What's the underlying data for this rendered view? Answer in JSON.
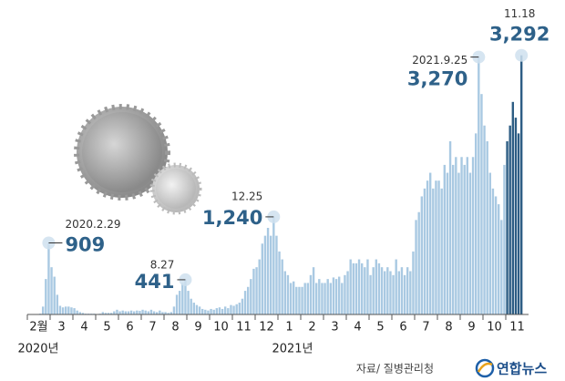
{
  "chart_data": {
    "type": "bar",
    "color": "#a9c9e2",
    "highlight_color": "#2d5d84",
    "ylim": [
      0,
      3300
    ],
    "years": [
      "2020년",
      "2021년"
    ],
    "source": "자료/ 질병관리청",
    "brand": "연합뉴스",
    "months": [
      {
        "label": "2월",
        "values": [
          0,
          0,
          0,
          0,
          10,
          100,
          450,
          909
        ],
        "date_labels": [
          null,
          null,
          null,
          null,
          null,
          null,
          null,
          "2020.2.29"
        ],
        "value_labels": [
          null,
          null,
          null,
          null,
          null,
          null,
          null,
          "909"
        ]
      },
      {
        "label": "3",
        "values": [
          600,
          480,
          250,
          110,
          90,
          100,
          100,
          90
        ]
      },
      {
        "label": "4",
        "values": [
          80,
          50,
          30,
          20,
          10,
          10,
          10,
          10
        ]
      },
      {
        "label": "5",
        "values": [
          5,
          10,
          30,
          20,
          20,
          20,
          40,
          60
        ]
      },
      {
        "label": "6",
        "values": [
          40,
          50,
          40,
          40,
          50,
          40,
          50,
          45
        ]
      },
      {
        "label": "7",
        "values": [
          60,
          50,
          40,
          60,
          40,
          30,
          50,
          30
        ]
      },
      {
        "label": "8",
        "values": [
          30,
          20,
          30,
          100,
          250,
          300,
          400,
          441
        ],
        "date_labels": [
          null,
          null,
          null,
          null,
          null,
          null,
          null,
          "8.27"
        ],
        "value_labels": [
          null,
          null,
          null,
          null,
          null,
          null,
          null,
          "441"
        ]
      },
      {
        "label": "9",
        "values": [
          300,
          200,
          150,
          120,
          100,
          70,
          60,
          50
        ]
      },
      {
        "label": "10",
        "values": [
          70,
          60,
          80,
          90,
          70,
          100,
          80,
          120
        ]
      },
      {
        "label": "11",
        "values": [
          110,
          130,
          150,
          200,
          300,
          350,
          450,
          580
        ]
      },
      {
        "label": "12",
        "values": [
          600,
          700,
          900,
          1000,
          1100,
          1000,
          1240,
          1000
        ],
        "date_labels": [
          null,
          null,
          null,
          null,
          null,
          null,
          "12.25",
          null
        ],
        "value_labels": [
          null,
          null,
          null,
          null,
          null,
          null,
          "1,240",
          null
        ]
      },
      {
        "label": "1",
        "values": [
          800,
          700,
          550,
          500,
          400,
          420,
          350,
          350
        ]
      },
      {
        "label": "2",
        "values": [
          350,
          400,
          400,
          500,
          600,
          400,
          450,
          400
        ]
      },
      {
        "label": "3",
        "values": [
          400,
          450,
          400,
          470,
          450,
          480,
          400,
          500
        ]
      },
      {
        "label": "4",
        "values": [
          550,
          700,
          650,
          650,
          700,
          650,
          600,
          700
        ]
      },
      {
        "label": "5",
        "values": [
          500,
          600,
          700,
          650,
          600,
          550,
          600,
          550
        ]
      },
      {
        "label": "6",
        "values": [
          500,
          700,
          550,
          600,
          500,
          600,
          550,
          800
        ]
      },
      {
        "label": "7",
        "values": [
          1200,
          1300,
          1500,
          1600,
          1700,
          1800,
          1600,
          1700
        ]
      },
      {
        "label": "8",
        "values": [
          1700,
          1600,
          1900,
          1800,
          2200,
          1900,
          2000,
          1800
        ]
      },
      {
        "label": "9",
        "values": [
          2000,
          1900,
          2000,
          1800,
          2000,
          2300,
          3270,
          2800
        ],
        "date_labels": [
          null,
          null,
          null,
          null,
          null,
          null,
          "2021.9.25",
          null
        ],
        "value_labels": [
          null,
          null,
          null,
          null,
          null,
          null,
          "3,270",
          null
        ]
      },
      {
        "label": "10",
        "values": [
          2400,
          2200,
          1800,
          1600,
          1500,
          1400,
          1200,
          1900
        ]
      },
      {
        "label": "11",
        "highlight": true,
        "values": [
          2200,
          2400,
          2700,
          2500,
          2300,
          3292
        ],
        "date_labels": [
          null,
          null,
          null,
          null,
          null,
          "11.18"
        ],
        "value_labels": [
          null,
          null,
          null,
          null,
          null,
          "3,292"
        ]
      }
    ]
  }
}
